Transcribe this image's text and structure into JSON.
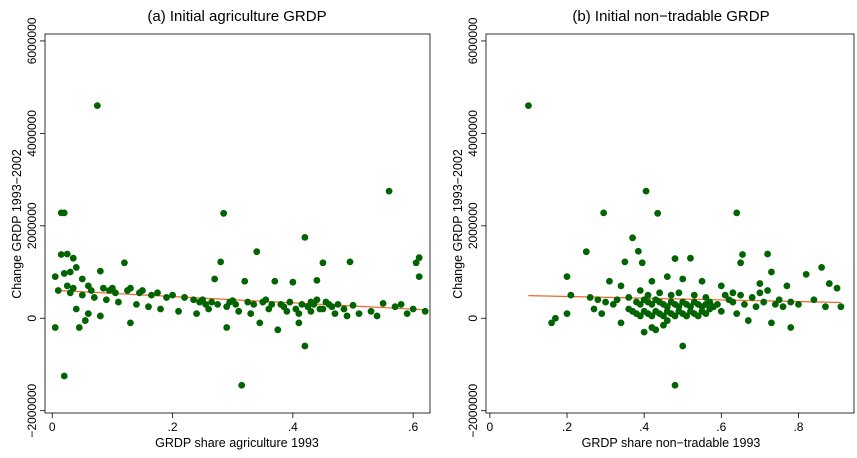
{
  "chart_data": [
    {
      "type": "scatter",
      "title": "(a) Initial agriculture GRDP",
      "xlabel": "GRDP share agriculture 1993",
      "ylabel": "Change GRDP 1993−2002",
      "xlim": [
        -0.012,
        0.628
      ],
      "ylim": [
        -2050000,
        6150000
      ],
      "xticks": [
        0,
        0.2,
        0.4,
        0.6
      ],
      "xtick_labels": [
        "0",
        ".2",
        ".4",
        ".6"
      ],
      "yticks": [
        -2000000,
        0,
        2000000,
        4000000,
        6000000
      ],
      "ytick_labels": [
        "−2000000",
        "0",
        "2000000",
        "4000000",
        "6000000"
      ],
      "grid": false,
      "legend": "none",
      "marker_color": "#006400",
      "fit_color": "#e8682a",
      "fit_line": {
        "x": [
          0.01,
          0.625
        ],
        "y": [
          600000,
          180000
        ]
      },
      "points": [
        [
          0.075,
          4600000
        ],
        [
          0.56,
          2750000
        ],
        [
          0.02,
          2280000
        ],
        [
          0.015,
          2280000
        ],
        [
          0.285,
          2270000
        ],
        [
          0.42,
          1750000
        ],
        [
          0.34,
          1440000
        ],
        [
          0.015,
          1380000
        ],
        [
          0.025,
          1390000
        ],
        [
          0.035,
          1300000
        ],
        [
          0.61,
          1310000
        ],
        [
          0.605,
          1200000
        ],
        [
          0.12,
          1200000
        ],
        [
          0.45,
          1200000
        ],
        [
          0.495,
          1220000
        ],
        [
          0.28,
          1220000
        ],
        [
          0.04,
          1100000
        ],
        [
          0.005,
          900000
        ],
        [
          0.02,
          970000
        ],
        [
          0.03,
          1000000
        ],
        [
          0.05,
          850000
        ],
        [
          0.08,
          1020000
        ],
        [
          0.61,
          900000
        ],
        [
          0.27,
          850000
        ],
        [
          0.37,
          800000
        ],
        [
          0.4,
          780000
        ],
        [
          0.32,
          800000
        ],
        [
          0.44,
          820000
        ],
        [
          0.06,
          700000
        ],
        [
          0.1,
          650000
        ],
        [
          0.13,
          650000
        ],
        [
          0.15,
          600000
        ],
        [
          0.175,
          550000
        ],
        [
          0.2,
          500000
        ],
        [
          0.22,
          450000
        ],
        [
          0.25,
          400000
        ],
        [
          0.3,
          380000
        ],
        [
          0.35,
          350000
        ],
        [
          0.38,
          300000
        ],
        [
          0.46,
          300000
        ],
        [
          0.5,
          280000
        ],
        [
          0.55,
          320000
        ],
        [
          0.57,
          250000
        ],
        [
          0.6,
          200000
        ],
        [
          0.62,
          150000
        ],
        [
          0.01,
          600000
        ],
        [
          0.03,
          550000
        ],
        [
          0.05,
          500000
        ],
        [
          0.07,
          450000
        ],
        [
          0.09,
          400000
        ],
        [
          0.11,
          350000
        ],
        [
          0.14,
          300000
        ],
        [
          0.16,
          250000
        ],
        [
          0.18,
          200000
        ],
        [
          0.21,
          150000
        ],
        [
          0.24,
          100000
        ],
        [
          0.26,
          200000
        ],
        [
          0.29,
          250000
        ],
        [
          0.31,
          150000
        ],
        [
          0.33,
          100000
        ],
        [
          0.36,
          200000
        ],
        [
          0.39,
          150000
        ],
        [
          0.41,
          100000
        ],
        [
          0.43,
          150000
        ],
        [
          0.45,
          200000
        ],
        [
          0.47,
          100000
        ],
        [
          0.49,
          50000
        ],
        [
          0.51,
          100000
        ],
        [
          0.53,
          150000
        ],
        [
          0.54,
          50000
        ],
        [
          0.58,
          300000
        ],
        [
          0.59,
          100000
        ],
        [
          0.04,
          200000
        ],
        [
          0.06,
          100000
        ],
        [
          0.08,
          50000
        ],
        [
          0.055,
          -50000
        ],
        [
          0.045,
          -200000
        ],
        [
          0.13,
          -100000
        ],
        [
          0.29,
          -200000
        ],
        [
          0.345,
          -100000
        ],
        [
          0.375,
          -250000
        ],
        [
          0.41,
          -100000
        ],
        [
          0.42,
          -600000
        ],
        [
          0.005,
          -200000
        ],
        [
          0.02,
          -1250000
        ],
        [
          0.315,
          -1450000
        ],
        [
          0.44,
          400000
        ],
        [
          0.43,
          350000
        ],
        [
          0.425,
          250000
        ],
        [
          0.435,
          300000
        ],
        [
          0.445,
          200000
        ],
        [
          0.455,
          350000
        ],
        [
          0.465,
          250000
        ],
        [
          0.475,
          300000
        ],
        [
          0.485,
          200000
        ],
        [
          0.415,
          300000
        ],
        [
          0.405,
          200000
        ],
        [
          0.395,
          350000
        ],
        [
          0.385,
          250000
        ],
        [
          0.365,
          300000
        ],
        [
          0.355,
          400000
        ],
        [
          0.335,
          300000
        ],
        [
          0.325,
          350000
        ],
        [
          0.305,
          300000
        ],
        [
          0.295,
          350000
        ],
        [
          0.275,
          300000
        ],
        [
          0.265,
          350000
        ],
        [
          0.255,
          300000
        ],
        [
          0.245,
          350000
        ],
        [
          0.235,
          400000
        ],
        [
          0.19,
          450000
        ],
        [
          0.165,
          500000
        ],
        [
          0.145,
          550000
        ],
        [
          0.125,
          600000
        ],
        [
          0.105,
          550000
        ],
        [
          0.095,
          600000
        ],
        [
          0.085,
          650000
        ],
        [
          0.065,
          600000
        ],
        [
          0.035,
          650000
        ],
        [
          0.025,
          700000
        ]
      ]
    },
    {
      "type": "scatter",
      "title": "(b) Initial non−tradable GRDP",
      "xlabel": "GRDP share non−tradable 1993",
      "ylabel": "Change GRDP 1993−2002",
      "xlim": [
        -0.01,
        0.944
      ],
      "ylim": [
        -2050000,
        6150000
      ],
      "xticks": [
        0,
        0.2,
        0.4,
        0.6,
        0.8
      ],
      "xtick_labels": [
        "0",
        ".2",
        ".4",
        ".6",
        ".8"
      ],
      "yticks": [
        -2000000,
        0,
        2000000,
        4000000,
        6000000
      ],
      "ytick_labels": [
        "−2000000",
        "0",
        "2000000",
        "4000000",
        "6000000"
      ],
      "grid": false,
      "legend": "none",
      "marker_color": "#006400",
      "fit_color": "#e8682a",
      "fit_line": {
        "x": [
          0.1,
          0.91
        ],
        "y": [
          490000,
          340000
        ]
      },
      "points": [
        [
          0.1,
          4600000
        ],
        [
          0.405,
          2750000
        ],
        [
          0.295,
          2280000
        ],
        [
          0.435,
          2270000
        ],
        [
          0.64,
          2280000
        ],
        [
          0.37,
          1740000
        ],
        [
          0.25,
          1440000
        ],
        [
          0.385,
          1450000
        ],
        [
          0.655,
          1380000
        ],
        [
          0.72,
          1390000
        ],
        [
          0.48,
          1290000
        ],
        [
          0.52,
          1300000
        ],
        [
          0.35,
          1220000
        ],
        [
          0.395,
          1200000
        ],
        [
          0.65,
          1200000
        ],
        [
          0.73,
          1000000
        ],
        [
          0.86,
          1100000
        ],
        [
          0.2,
          900000
        ],
        [
          0.31,
          800000
        ],
        [
          0.34,
          700000
        ],
        [
          0.42,
          800000
        ],
        [
          0.46,
          900000
        ],
        [
          0.5,
          850000
        ],
        [
          0.55,
          800000
        ],
        [
          0.6,
          700000
        ],
        [
          0.7,
          750000
        ],
        [
          0.77,
          700000
        ],
        [
          0.82,
          950000
        ],
        [
          0.88,
          750000
        ],
        [
          0.9,
          650000
        ],
        [
          0.21,
          500000
        ],
        [
          0.26,
          450000
        ],
        [
          0.28,
          400000
        ],
        [
          0.3,
          350000
        ],
        [
          0.32,
          300000
        ],
        [
          0.33,
          400000
        ],
        [
          0.36,
          450000
        ],
        [
          0.38,
          350000
        ],
        [
          0.39,
          300000
        ],
        [
          0.4,
          400000
        ],
        [
          0.41,
          350000
        ],
        [
          0.42,
          300000
        ],
        [
          0.43,
          400000
        ],
        [
          0.44,
          350000
        ],
        [
          0.45,
          300000
        ],
        [
          0.46,
          250000
        ],
        [
          0.47,
          350000
        ],
        [
          0.48,
          300000
        ],
        [
          0.49,
          250000
        ],
        [
          0.5,
          350000
        ],
        [
          0.51,
          300000
        ],
        [
          0.52,
          250000
        ],
        [
          0.53,
          350000
        ],
        [
          0.54,
          300000
        ],
        [
          0.55,
          250000
        ],
        [
          0.56,
          300000
        ],
        [
          0.57,
          350000
        ],
        [
          0.58,
          250000
        ],
        [
          0.59,
          300000
        ],
        [
          0.62,
          400000
        ],
        [
          0.63,
          350000
        ],
        [
          0.66,
          300000
        ],
        [
          0.68,
          450000
        ],
        [
          0.69,
          250000
        ],
        [
          0.71,
          350000
        ],
        [
          0.74,
          300000
        ],
        [
          0.75,
          400000
        ],
        [
          0.76,
          250000
        ],
        [
          0.78,
          350000
        ],
        [
          0.8,
          300000
        ],
        [
          0.84,
          400000
        ],
        [
          0.87,
          250000
        ],
        [
          0.91,
          250000
        ],
        [
          0.36,
          200000
        ],
        [
          0.37,
          150000
        ],
        [
          0.38,
          100000
        ],
        [
          0.39,
          50000
        ],
        [
          0.4,
          150000
        ],
        [
          0.41,
          100000
        ],
        [
          0.42,
          50000
        ],
        [
          0.43,
          150000
        ],
        [
          0.44,
          100000
        ],
        [
          0.45,
          50000
        ],
        [
          0.46,
          150000
        ],
        [
          0.47,
          100000
        ],
        [
          0.48,
          50000
        ],
        [
          0.49,
          150000
        ],
        [
          0.5,
          100000
        ],
        [
          0.51,
          50000
        ],
        [
          0.52,
          150000
        ],
        [
          0.53,
          100000
        ],
        [
          0.54,
          50000
        ],
        [
          0.55,
          150000
        ],
        [
          0.56,
          100000
        ],
        [
          0.57,
          200000
        ],
        [
          0.6,
          150000
        ],
        [
          0.64,
          100000
        ],
        [
          0.67,
          -50000
        ],
        [
          0.73,
          -100000
        ],
        [
          0.78,
          -200000
        ],
        [
          0.16,
          -100000
        ],
        [
          0.17,
          0
        ],
        [
          0.2,
          100000
        ],
        [
          0.27,
          200000
        ],
        [
          0.29,
          100000
        ],
        [
          0.34,
          -100000
        ],
        [
          0.4,
          -300000
        ],
        [
          0.42,
          -200000
        ],
        [
          0.43,
          -250000
        ],
        [
          0.45,
          -150000
        ],
        [
          0.46,
          -50000
        ],
        [
          0.5,
          -600000
        ],
        [
          0.48,
          -1450000
        ],
        [
          0.39,
          600000
        ],
        [
          0.41,
          500000
        ],
        [
          0.44,
          550000
        ],
        [
          0.47,
          500000
        ],
        [
          0.49,
          550000
        ],
        [
          0.53,
          500000
        ],
        [
          0.56,
          450000
        ],
        [
          0.61,
          500000
        ],
        [
          0.63,
          550000
        ],
        [
          0.65,
          500000
        ],
        [
          0.7,
          550000
        ],
        [
          0.72,
          600000
        ]
      ]
    }
  ]
}
